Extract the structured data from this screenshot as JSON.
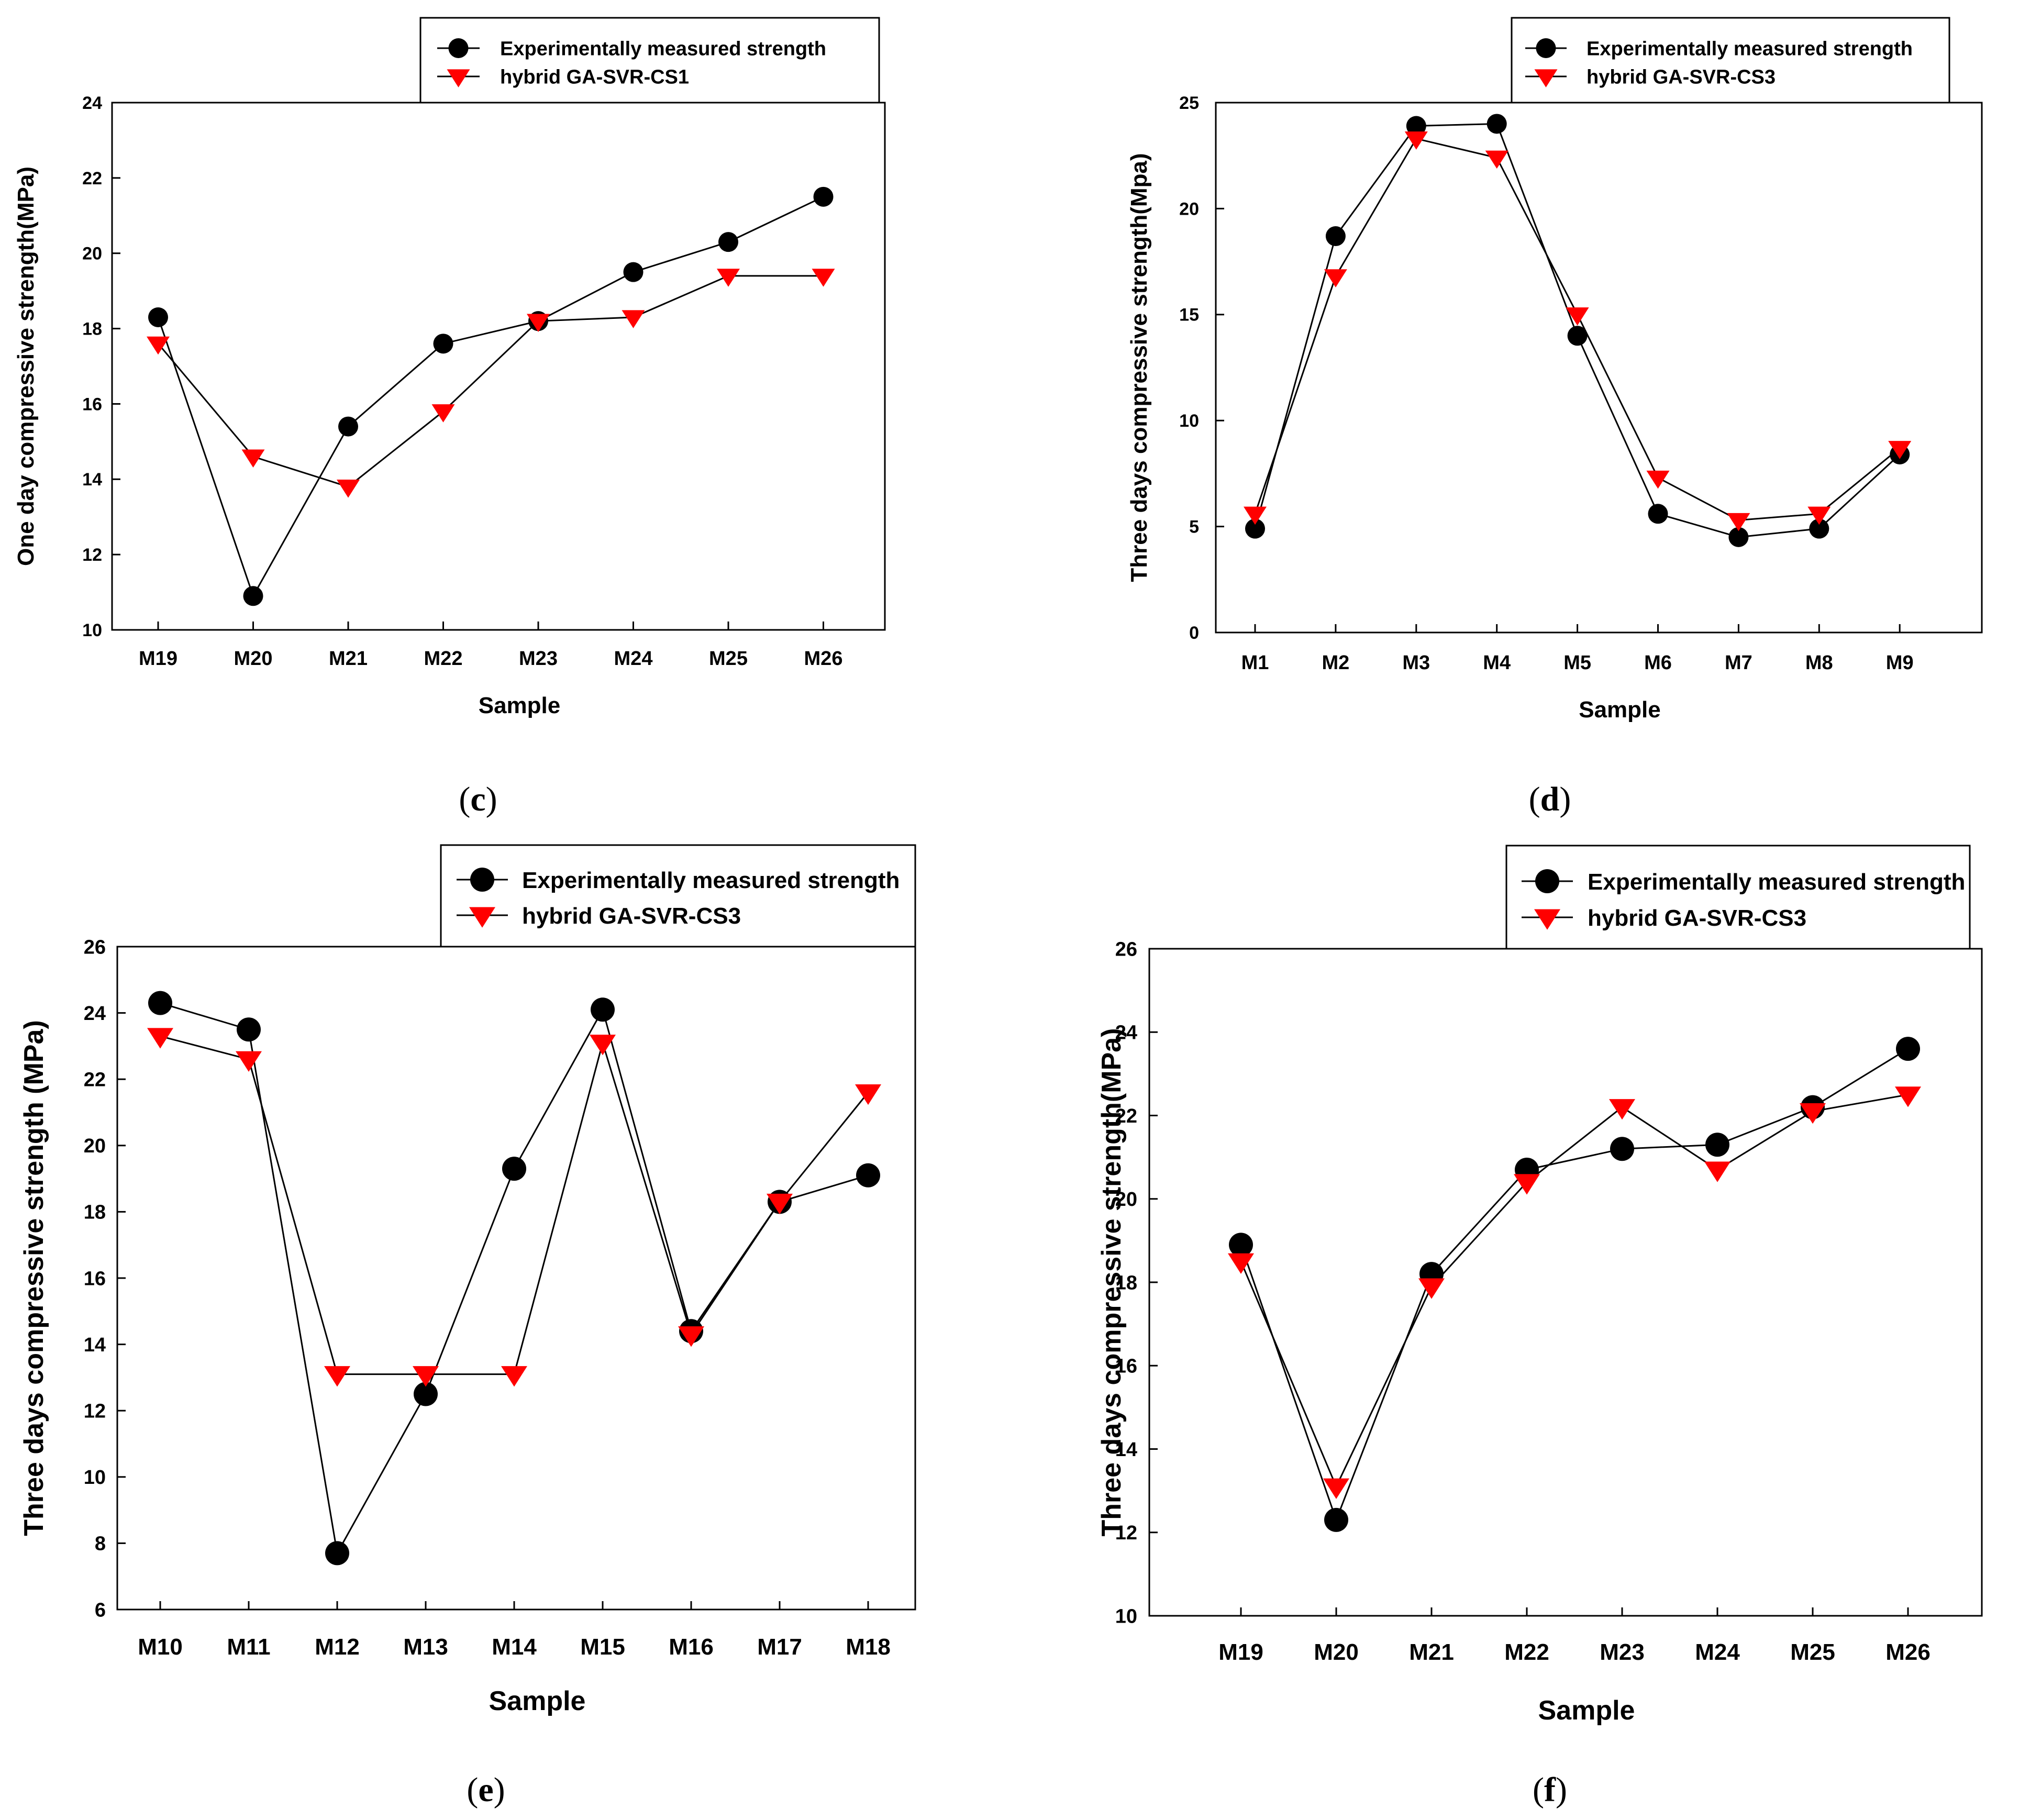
{
  "colors": {
    "series_measured": "#000000",
    "series_predicted": "#ff0000",
    "line": "#000000",
    "background": "#ffffff"
  },
  "chart_data": [
    {
      "type": "line",
      "caption": "(c)",
      "caption_letter": "c",
      "xlabel": "Sample",
      "ylabel": "One day compressive strength(MPa)",
      "categories": [
        "M19",
        "M20",
        "M21",
        "M22",
        "M23",
        "M24",
        "M25",
        "M26"
      ],
      "ylim": [
        10,
        24
      ],
      "yticks": [
        10,
        12,
        14,
        16,
        18,
        20,
        22,
        24
      ],
      "grid": false,
      "legend_position": "top-right",
      "series": [
        {
          "name": "Experimentally measured strength",
          "marker": "circle",
          "values": [
            18.3,
            10.9,
            15.4,
            17.6,
            18.2,
            19.5,
            20.3,
            21.5
          ]
        },
        {
          "name": "hybrid GA-SVR-CS1",
          "marker": "triangle-down",
          "values": [
            17.6,
            14.6,
            13.8,
            15.8,
            18.2,
            18.3,
            19.4,
            19.4
          ]
        }
      ]
    },
    {
      "type": "line",
      "caption": "(d)",
      "caption_letter": "d",
      "xlabel": "Sample",
      "ylabel": "Three days compressive strength(Mpa)",
      "categories": [
        "M1",
        "M2",
        "M3",
        "M4",
        "M5",
        "M6",
        "M7",
        "M8",
        "M9"
      ],
      "ylim": [
        0,
        25
      ],
      "yticks": [
        0,
        5,
        10,
        15,
        20,
        25
      ],
      "grid": false,
      "legend_position": "top-right",
      "series": [
        {
          "name": "Experimentally measured strength",
          "marker": "circle",
          "values": [
            4.9,
            18.7,
            23.9,
            24.0,
            14.0,
            5.6,
            4.5,
            4.9,
            8.4
          ]
        },
        {
          "name": "hybrid GA-SVR-CS3",
          "marker": "triangle-down",
          "values": [
            5.6,
            16.8,
            23.3,
            22.4,
            15.0,
            7.3,
            5.3,
            5.6,
            8.7
          ]
        }
      ]
    },
    {
      "type": "line",
      "caption": "(e)",
      "caption_letter": "e",
      "xlabel": "Sample",
      "ylabel": "Three days compressive strength (MPa)",
      "categories": [
        "M10",
        "M11",
        "M12",
        "M13",
        "M14",
        "M15",
        "M16",
        "M17",
        "M18"
      ],
      "ylim": [
        6,
        26
      ],
      "yticks": [
        6,
        8,
        10,
        12,
        14,
        16,
        18,
        20,
        22,
        24,
        26
      ],
      "grid": false,
      "legend_position": "top-right",
      "series": [
        {
          "name": "Experimentally measured strength",
          "marker": "circle",
          "values": [
            24.3,
            23.5,
            7.7,
            12.5,
            19.3,
            24.1,
            14.4,
            18.3,
            19.1
          ]
        },
        {
          "name": "hybrid GA-SVR-CS3",
          "marker": "triangle-down",
          "values": [
            23.3,
            22.6,
            13.1,
            13.1,
            13.1,
            23.1,
            14.3,
            18.3,
            21.6
          ]
        }
      ]
    },
    {
      "type": "line",
      "caption": "(f)",
      "caption_letter": "f",
      "xlabel": "Sample",
      "ylabel": "Three days compressive strength(MPa)",
      "categories": [
        "M19",
        "M20",
        "M21",
        "M22",
        "M23",
        "M24",
        "M25",
        "M26"
      ],
      "ylim": [
        10,
        26
      ],
      "yticks": [
        10,
        12,
        14,
        16,
        18,
        20,
        22,
        24,
        26
      ],
      "grid": false,
      "legend_position": "top-right",
      "series": [
        {
          "name": "Experimentally measured strength",
          "marker": "circle",
          "values": [
            18.9,
            12.3,
            18.2,
            20.7,
            21.2,
            21.3,
            22.2,
            23.6
          ]
        },
        {
          "name": "hybrid GA-SVR-CS3",
          "marker": "triangle-down",
          "values": [
            18.5,
            13.1,
            17.9,
            20.4,
            22.2,
            20.7,
            22.1,
            22.5
          ]
        }
      ]
    }
  ]
}
